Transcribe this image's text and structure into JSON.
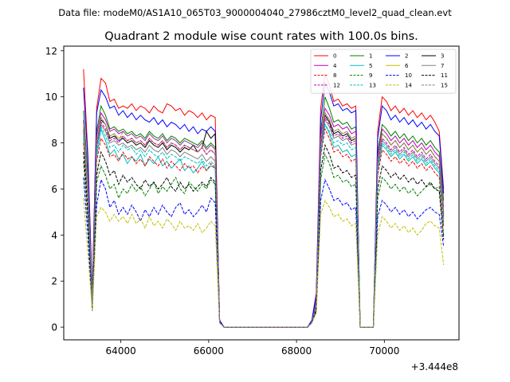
{
  "chart_data": {
    "type": "line",
    "header": "Data file: modeM0/AS1A10_065T03_9000004040_27986cztM0_level2_quad_clean.evt",
    "title": "Quadrant 2 module wise count rates with 100.0s bins.",
    "xlabel": "",
    "ylabel": "",
    "x_offset_label": "+3.444e8",
    "xlim": [
      62700,
      71700
    ],
    "ylim": [
      -0.55,
      12.2
    ],
    "x_ticks": [
      64000,
      66000,
      68000,
      70000
    ],
    "x_tick_labels": [
      "64000",
      "66000",
      "68000",
      "70000"
    ],
    "y_ticks": [
      0,
      2,
      4,
      6,
      8,
      10,
      12
    ],
    "y_tick_labels": [
      "0",
      "2",
      "4",
      "6",
      "8",
      "10",
      "12"
    ],
    "legend_position": "top-right",
    "legend_columns": 4,
    "x": [
      63150,
      63250,
      63350,
      63450,
      63550,
      63650,
      63750,
      63850,
      63950,
      64050,
      64150,
      64250,
      64350,
      64450,
      64550,
      64650,
      64750,
      64850,
      64950,
      65050,
      65150,
      65250,
      65350,
      65450,
      65550,
      65650,
      65750,
      65850,
      65950,
      66050,
      66150,
      66250,
      66350,
      68250,
      68350,
      68450,
      68550,
      68650,
      68750,
      68850,
      68950,
      69050,
      69150,
      69250,
      69350,
      69450,
      69550,
      69650,
      69750,
      69850,
      69950,
      70050,
      70150,
      70250,
      70350,
      70450,
      70550,
      70650,
      70750,
      70850,
      70950,
      71050,
      71150,
      71250,
      71350
    ],
    "series": [
      {
        "name": "0",
        "color": "#ff0000",
        "dash": "solid",
        "values": [
          11.2,
          7.5,
          1.5,
          9.5,
          10.8,
          10.6,
          9.8,
          9.9,
          9.5,
          9.6,
          9.5,
          9.7,
          9.4,
          9.6,
          9.5,
          9.3,
          9.6,
          9.4,
          9.3,
          9.7,
          9.6,
          9.4,
          9.5,
          9.2,
          9.4,
          9.3,
          9.1,
          9.3,
          9.0,
          9.2,
          9.1,
          0.3,
          0.0,
          0.0,
          0.3,
          1.5,
          9.5,
          11.0,
          10.5,
          9.8,
          9.9,
          9.6,
          9.7,
          9.5,
          9.6,
          0.0,
          0.0,
          0.0,
          0.0,
          8.5,
          10.0,
          9.8,
          9.4,
          9.6,
          9.3,
          9.5,
          9.2,
          9.4,
          9.1,
          9.3,
          9.0,
          9.2,
          8.9,
          8.5,
          6.0
        ]
      },
      {
        "name": "1",
        "color": "#008000",
        "dash": "solid",
        "values": [
          9.4,
          6.6,
          1.2,
          8.5,
          9.6,
          9.2,
          8.6,
          8.7,
          8.5,
          8.6,
          8.4,
          8.5,
          8.3,
          8.4,
          8.2,
          8.5,
          8.3,
          8.2,
          8.4,
          8.1,
          8.3,
          8.2,
          8.0,
          8.2,
          8.1,
          8.0,
          7.9,
          8.1,
          7.8,
          8.0,
          7.8,
          0.3,
          0.0,
          0.0,
          0.3,
          1.2,
          8.5,
          10.0,
          9.5,
          8.9,
          9.0,
          8.8,
          8.9,
          8.6,
          8.7,
          0.0,
          0.0,
          0.0,
          0.0,
          7.6,
          8.8,
          8.6,
          8.3,
          8.5,
          8.2,
          8.4,
          8.1,
          8.3,
          8.0,
          8.2,
          7.9,
          8.1,
          7.8,
          7.6,
          5.5
        ]
      },
      {
        "name": "2",
        "color": "#0000ff",
        "dash": "solid",
        "values": [
          10.4,
          7.3,
          1.4,
          9.3,
          10.3,
          10.0,
          9.5,
          9.6,
          9.2,
          9.4,
          9.1,
          9.3,
          9.0,
          9.2,
          9.0,
          8.9,
          9.1,
          8.8,
          9.0,
          8.7,
          8.9,
          8.8,
          8.6,
          8.8,
          8.5,
          8.7,
          8.4,
          8.6,
          8.5,
          8.7,
          8.5,
          0.3,
          0.0,
          0.0,
          0.3,
          1.4,
          9.0,
          10.6,
          10.2,
          9.6,
          9.7,
          9.4,
          9.5,
          9.3,
          9.4,
          0.0,
          0.0,
          0.0,
          0.0,
          8.2,
          9.6,
          9.4,
          9.0,
          9.2,
          8.9,
          9.1,
          8.8,
          9.0,
          8.7,
          8.9,
          8.6,
          8.8,
          8.5,
          8.3,
          5.8
        ]
      },
      {
        "name": "3",
        "color": "#000000",
        "dash": "solid",
        "values": [
          8.6,
          6.2,
          1.0,
          8.0,
          9.0,
          8.8,
          8.2,
          8.3,
          8.1,
          8.2,
          8.0,
          8.1,
          7.9,
          8.0,
          7.8,
          8.1,
          7.9,
          7.8,
          8.0,
          7.7,
          7.9,
          7.8,
          7.6,
          7.8,
          7.7,
          7.9,
          7.6,
          7.8,
          8.5,
          8.2,
          8.4,
          0.2,
          0.0,
          0.0,
          0.2,
          1.0,
          8.0,
          9.2,
          8.9,
          8.4,
          8.5,
          8.3,
          8.4,
          8.1,
          8.2,
          0.0,
          0.0,
          0.0,
          0.0,
          7.2,
          8.4,
          8.2,
          7.9,
          8.1,
          7.8,
          8.0,
          7.7,
          7.9,
          7.6,
          7.8,
          7.5,
          7.7,
          7.4,
          7.2,
          4.8
        ]
      },
      {
        "name": "4",
        "color": "#bf00bf",
        "dash": "solid",
        "values": [
          9.0,
          6.4,
          1.1,
          8.3,
          9.3,
          9.0,
          8.5,
          8.6,
          8.4,
          8.5,
          8.3,
          8.4,
          8.2,
          8.3,
          8.1,
          8.4,
          8.2,
          8.1,
          8.3,
          8.0,
          8.2,
          8.1,
          7.9,
          8.1,
          8.0,
          7.9,
          7.8,
          8.0,
          7.7,
          7.9,
          7.7,
          0.2,
          0.0,
          0.0,
          0.2,
          1.1,
          8.3,
          9.5,
          9.2,
          8.7,
          8.8,
          8.6,
          8.7,
          8.4,
          8.5,
          0.0,
          0.0,
          0.0,
          0.0,
          7.4,
          8.6,
          8.4,
          8.1,
          8.3,
          8.0,
          8.2,
          7.9,
          8.1,
          7.8,
          8.0,
          7.7,
          7.9,
          7.6,
          7.4,
          5.2
        ]
      },
      {
        "name": "5",
        "color": "#00bfbf",
        "dash": "solid",
        "values": [
          8.2,
          5.6,
          0.9,
          7.4,
          8.6,
          8.1,
          7.5,
          7.7,
          7.3,
          7.5,
          7.1,
          7.4,
          7.2,
          7.5,
          7.0,
          7.3,
          7.1,
          7.4,
          7.0,
          7.2,
          6.9,
          7.1,
          7.3,
          6.8,
          7.0,
          6.7,
          6.9,
          7.2,
          6.8,
          7.0,
          6.9,
          0.2,
          0.0,
          0.0,
          0.2,
          0.9,
          7.5,
          8.8,
          8.4,
          7.8,
          7.9,
          7.6,
          7.7,
          7.4,
          7.5,
          0.0,
          0.0,
          0.0,
          0.0,
          6.8,
          7.9,
          7.7,
          7.4,
          7.6,
          7.3,
          7.5,
          7.2,
          7.4,
          7.1,
          7.3,
          7.0,
          7.2,
          6.9,
          6.7,
          4.5
        ]
      },
      {
        "name": "6",
        "color": "#bfbf00",
        "dash": "solid",
        "values": [
          8.8,
          6.2,
          1.0,
          8.1,
          9.1,
          8.8,
          8.3,
          8.4,
          8.2,
          8.3,
          8.1,
          8.2,
          8.0,
          8.1,
          7.9,
          8.2,
          8.0,
          7.9,
          8.1,
          7.8,
          8.0,
          7.9,
          7.7,
          7.9,
          7.8,
          7.7,
          7.6,
          7.8,
          7.5,
          7.7,
          7.5,
          0.2,
          0.0,
          0.0,
          0.2,
          1.0,
          8.1,
          9.3,
          9.0,
          8.5,
          8.6,
          8.4,
          8.5,
          8.2,
          8.3,
          0.0,
          0.0,
          0.0,
          0.0,
          7.2,
          8.4,
          8.2,
          7.9,
          8.1,
          7.8,
          8.0,
          7.7,
          7.9,
          7.6,
          7.8,
          7.5,
          7.7,
          7.4,
          7.2,
          5.0
        ]
      },
      {
        "name": "7",
        "color": "#808080",
        "dash": "solid",
        "values": [
          8.4,
          5.9,
          1.0,
          7.8,
          8.8,
          8.5,
          8.0,
          8.1,
          7.9,
          8.0,
          7.8,
          7.9,
          7.7,
          7.8,
          7.6,
          7.9,
          7.7,
          7.6,
          7.8,
          7.5,
          7.7,
          7.6,
          7.4,
          7.6,
          7.5,
          7.4,
          7.3,
          7.5,
          7.2,
          7.4,
          7.2,
          0.2,
          0.0,
          0.0,
          0.2,
          1.0,
          7.8,
          9.0,
          8.7,
          8.2,
          8.3,
          8.1,
          8.2,
          7.9,
          8.0,
          0.0,
          0.0,
          0.0,
          0.0,
          7.0,
          8.1,
          7.9,
          7.6,
          7.8,
          7.5,
          7.7,
          7.4,
          7.6,
          7.3,
          7.5,
          7.2,
          7.4,
          7.1,
          6.9,
          4.7
        ]
      },
      {
        "name": "8",
        "color": "#ff0000",
        "dash": "dashed",
        "values": [
          8.0,
          5.5,
          0.9,
          7.2,
          8.2,
          7.9,
          7.4,
          7.5,
          7.2,
          7.6,
          7.3,
          7.4,
          7.1,
          7.3,
          7.0,
          7.4,
          7.2,
          7.0,
          7.3,
          6.9,
          7.2,
          7.0,
          6.8,
          7.1,
          6.9,
          7.0,
          6.7,
          7.0,
          6.8,
          7.1,
          6.9,
          0.2,
          0.0,
          0.0,
          0.2,
          0.9,
          7.4,
          8.6,
          8.2,
          7.6,
          7.7,
          7.4,
          7.5,
          7.2,
          7.3,
          0.0,
          0.0,
          0.0,
          0.0,
          6.6,
          7.7,
          7.5,
          7.2,
          7.4,
          7.1,
          7.3,
          7.0,
          7.2,
          6.9,
          7.1,
          6.8,
          7.0,
          6.7,
          6.5,
          4.4
        ]
      },
      {
        "name": "9",
        "color": "#008000",
        "dash": "dashed",
        "values": [
          7.2,
          4.6,
          0.8,
          6.3,
          7.0,
          6.6,
          6.0,
          6.2,
          5.6,
          6.0,
          5.8,
          6.2,
          5.9,
          6.1,
          5.7,
          6.0,
          6.3,
          5.8,
          6.1,
          5.9,
          6.2,
          6.5,
          6.0,
          5.8,
          6.3,
          6.1,
          5.9,
          6.2,
          6.0,
          6.4,
          6.2,
          0.2,
          0.0,
          0.0,
          0.2,
          0.8,
          6.4,
          7.5,
          7.1,
          6.5,
          6.6,
          6.3,
          6.4,
          6.1,
          6.2,
          0.0,
          0.0,
          0.0,
          0.0,
          5.6,
          6.5,
          6.3,
          6.0,
          6.2,
          5.9,
          6.1,
          5.8,
          6.0,
          5.7,
          5.9,
          6.1,
          6.2,
          6.0,
          6.1,
          4.0
        ]
      },
      {
        "name": "10",
        "color": "#0000ff",
        "dash": "dashed",
        "values": [
          6.5,
          4.0,
          0.7,
          5.3,
          6.4,
          6.0,
          5.2,
          5.5,
          4.9,
          5.2,
          4.9,
          5.3,
          5.0,
          4.6,
          5.1,
          4.8,
          5.2,
          4.9,
          5.3,
          5.0,
          4.8,
          5.2,
          5.4,
          4.9,
          5.1,
          4.8,
          5.0,
          5.3,
          5.0,
          5.6,
          5.4,
          0.2,
          0.0,
          0.0,
          0.2,
          0.7,
          5.5,
          6.4,
          6.0,
          5.5,
          5.6,
          5.3,
          5.4,
          5.1,
          5.2,
          0.0,
          0.0,
          0.0,
          0.0,
          4.8,
          5.5,
          5.3,
          5.0,
          5.2,
          4.9,
          5.1,
          4.8,
          5.0,
          4.7,
          4.9,
          5.1,
          5.2,
          5.0,
          4.9,
          3.5
        ]
      },
      {
        "name": "11",
        "color": "#000000",
        "dash": "dashed",
        "values": [
          7.6,
          5.0,
          0.8,
          6.6,
          7.6,
          7.2,
          6.6,
          6.8,
          6.2,
          6.6,
          6.3,
          6.5,
          6.2,
          6.0,
          6.4,
          6.1,
          6.3,
          6.0,
          6.2,
          6.5,
          6.1,
          5.9,
          6.3,
          6.0,
          6.2,
          5.9,
          6.1,
          6.3,
          6.1,
          6.5,
          6.3,
          0.2,
          0.0,
          0.0,
          0.2,
          0.8,
          6.8,
          7.9,
          7.5,
          6.9,
          7.0,
          6.7,
          6.8,
          6.5,
          6.6,
          0.0,
          0.0,
          0.0,
          0.0,
          6.0,
          7.0,
          6.8,
          6.5,
          6.7,
          6.4,
          6.6,
          6.3,
          6.5,
          6.2,
          6.4,
          6.1,
          6.3,
          6.0,
          5.9,
          3.8
        ]
      },
      {
        "name": "12",
        "color": "#bf00bf",
        "dash": "dashed",
        "values": [
          8.5,
          6.0,
          1.0,
          7.9,
          8.9,
          8.6,
          8.1,
          8.2,
          8.0,
          8.3,
          8.1,
          8.2,
          8.0,
          8.1,
          7.9,
          8.2,
          8.0,
          7.9,
          8.1,
          7.8,
          8.0,
          7.9,
          7.7,
          7.9,
          7.8,
          7.7,
          7.6,
          7.8,
          7.5,
          7.7,
          7.5,
          0.2,
          0.0,
          0.0,
          0.2,
          1.0,
          7.9,
          9.1,
          8.8,
          8.3,
          8.4,
          8.2,
          8.3,
          8.0,
          8.1,
          0.0,
          0.0,
          0.0,
          0.0,
          7.1,
          8.2,
          8.0,
          7.7,
          7.9,
          7.6,
          7.8,
          7.5,
          7.7,
          7.4,
          7.6,
          7.3,
          7.5,
          7.2,
          7.0,
          4.9
        ]
      },
      {
        "name": "13",
        "color": "#00bfbf",
        "dash": "dashed",
        "values": [
          8.3,
          5.8,
          0.9,
          7.6,
          8.7,
          8.3,
          7.8,
          7.9,
          7.6,
          7.9,
          7.7,
          7.8,
          7.5,
          7.7,
          7.4,
          7.7,
          7.5,
          7.4,
          7.6,
          7.3,
          7.5,
          7.4,
          7.2,
          7.4,
          7.3,
          7.2,
          7.1,
          7.3,
          7.0,
          7.2,
          7.0,
          0.2,
          0.0,
          0.0,
          0.2,
          0.9,
          7.6,
          8.8,
          8.5,
          8.0,
          8.1,
          7.9,
          8.0,
          7.7,
          7.8,
          0.0,
          0.0,
          0.0,
          0.0,
          6.9,
          8.0,
          7.8,
          7.5,
          7.7,
          7.4,
          7.6,
          7.3,
          7.5,
          7.2,
          7.4,
          7.1,
          7.3,
          7.0,
          6.8,
          4.6
        ]
      },
      {
        "name": "14",
        "color": "#bfbf00",
        "dash": "dashed",
        "values": [
          5.6,
          3.2,
          0.7,
          4.8,
          5.2,
          5.0,
          4.6,
          4.9,
          4.6,
          4.8,
          4.5,
          4.9,
          4.5,
          4.7,
          4.3,
          4.8,
          4.4,
          4.6,
          4.3,
          4.7,
          4.5,
          4.2,
          4.6,
          4.3,
          4.4,
          4.2,
          4.5,
          4.1,
          4.3,
          4.6,
          4.4,
          0.2,
          0.0,
          0.0,
          0.2,
          0.6,
          4.9,
          5.5,
          5.2,
          4.8,
          4.9,
          4.6,
          4.7,
          4.4,
          4.5,
          0.0,
          0.0,
          0.0,
          0.0,
          4.0,
          4.8,
          4.6,
          4.3,
          4.5,
          4.2,
          4.4,
          4.1,
          4.3,
          4.0,
          4.2,
          4.5,
          4.6,
          4.4,
          4.3,
          2.7
        ]
      },
      {
        "name": "15",
        "color": "#808080",
        "dash": "dashed",
        "values": [
          8.7,
          6.1,
          1.0,
          8.0,
          9.1,
          8.8,
          8.3,
          8.4,
          8.1,
          8.5,
          8.3,
          8.4,
          8.2,
          8.3,
          8.1,
          8.4,
          8.2,
          8.1,
          8.3,
          8.0,
          8.2,
          8.1,
          7.9,
          8.1,
          8.0,
          7.9,
          7.8,
          8.0,
          7.7,
          7.9,
          7.7,
          0.2,
          0.0,
          0.0,
          0.2,
          1.0,
          8.1,
          9.3,
          9.0,
          8.5,
          8.6,
          8.4,
          8.5,
          8.2,
          8.3,
          0.0,
          0.0,
          0.0,
          0.0,
          7.3,
          8.4,
          8.2,
          7.9,
          8.1,
          7.8,
          8.0,
          7.7,
          7.9,
          7.6,
          7.8,
          7.5,
          7.7,
          7.4,
          7.2,
          5.0
        ]
      }
    ]
  }
}
